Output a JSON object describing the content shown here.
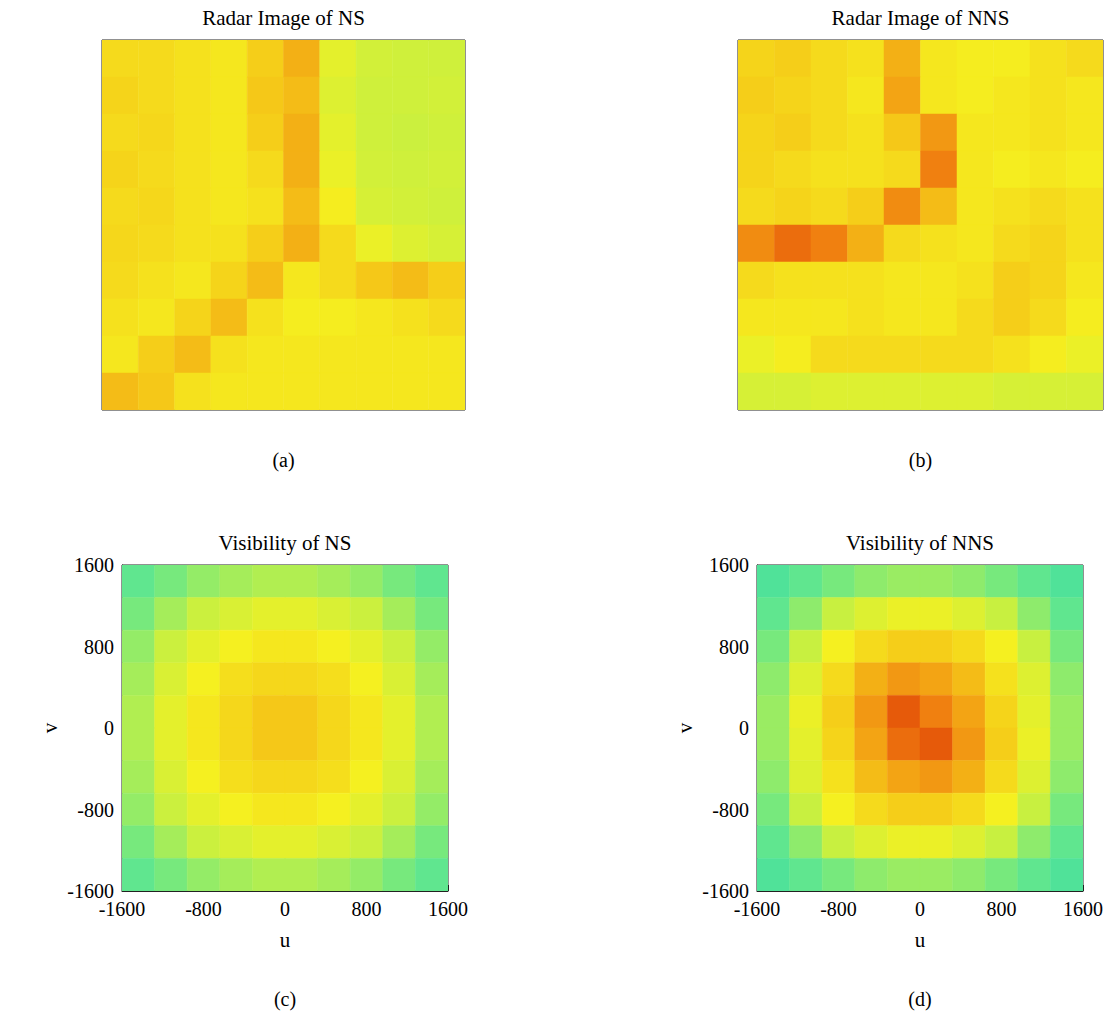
{
  "chart_data": [
    {
      "type": "heatmap",
      "title": "Radar Image of NS",
      "annotations": [
        "(a)"
      ],
      "tick_labels": false,
      "cells": [
        [
          0.62,
          0.62,
          0.6,
          0.58,
          0.66,
          0.72,
          0.5,
          0.45,
          0.44,
          0.44
        ],
        [
          0.64,
          0.62,
          0.6,
          0.58,
          0.68,
          0.7,
          0.48,
          0.44,
          0.44,
          0.45
        ],
        [
          0.62,
          0.63,
          0.6,
          0.58,
          0.66,
          0.72,
          0.5,
          0.44,
          0.43,
          0.44
        ],
        [
          0.64,
          0.62,
          0.6,
          0.58,
          0.62,
          0.72,
          0.52,
          0.45,
          0.44,
          0.45
        ],
        [
          0.62,
          0.63,
          0.6,
          0.58,
          0.6,
          0.7,
          0.56,
          0.46,
          0.45,
          0.44
        ],
        [
          0.63,
          0.62,
          0.6,
          0.6,
          0.66,
          0.72,
          0.62,
          0.52,
          0.48,
          0.46
        ],
        [
          0.62,
          0.6,
          0.58,
          0.64,
          0.7,
          0.58,
          0.62,
          0.68,
          0.7,
          0.66
        ],
        [
          0.6,
          0.58,
          0.64,
          0.7,
          0.6,
          0.56,
          0.56,
          0.58,
          0.6,
          0.62
        ],
        [
          0.58,
          0.66,
          0.7,
          0.6,
          0.58,
          0.58,
          0.58,
          0.58,
          0.58,
          0.58
        ],
        [
          0.7,
          0.68,
          0.6,
          0.58,
          0.58,
          0.58,
          0.58,
          0.58,
          0.58,
          0.58
        ]
      ]
    },
    {
      "type": "heatmap",
      "title": "Radar Image of NNS",
      "annotations": [
        "(b)"
      ],
      "tick_labels": false,
      "cells": [
        [
          0.64,
          0.66,
          0.62,
          0.6,
          0.72,
          0.58,
          0.56,
          0.56,
          0.6,
          0.62
        ],
        [
          0.66,
          0.64,
          0.62,
          0.58,
          0.74,
          0.58,
          0.56,
          0.58,
          0.6,
          0.58
        ],
        [
          0.64,
          0.66,
          0.62,
          0.6,
          0.68,
          0.76,
          0.58,
          0.58,
          0.6,
          0.58
        ],
        [
          0.64,
          0.62,
          0.6,
          0.6,
          0.62,
          0.8,
          0.58,
          0.56,
          0.58,
          0.56
        ],
        [
          0.62,
          0.64,
          0.62,
          0.66,
          0.78,
          0.7,
          0.58,
          0.6,
          0.62,
          0.6
        ],
        [
          0.78,
          0.82,
          0.8,
          0.72,
          0.62,
          0.6,
          0.58,
          0.62,
          0.64,
          0.6
        ],
        [
          0.62,
          0.6,
          0.6,
          0.6,
          0.58,
          0.58,
          0.6,
          0.66,
          0.64,
          0.58
        ],
        [
          0.58,
          0.58,
          0.58,
          0.6,
          0.58,
          0.58,
          0.62,
          0.66,
          0.62,
          0.56
        ],
        [
          0.52,
          0.56,
          0.62,
          0.62,
          0.62,
          0.62,
          0.62,
          0.6,
          0.56,
          0.52
        ],
        [
          0.46,
          0.46,
          0.48,
          0.48,
          0.48,
          0.48,
          0.48,
          0.46,
          0.46,
          0.46
        ]
      ]
    },
    {
      "type": "heatmap",
      "title": "Visibility of NS",
      "annotations": [
        "(c)"
      ],
      "x_label": "u",
      "y_label": "v",
      "grid": false,
      "xlim": [
        -1600,
        1600
      ],
      "ylim": [
        -1600,
        1600
      ],
      "xticks": [
        -1600,
        -800,
        0,
        800,
        1600
      ],
      "yticks": [
        -1600,
        -800,
        0,
        800,
        1600
      ],
      "cells": [
        [
          0.22,
          0.28,
          0.33,
          0.36,
          0.38,
          0.38,
          0.36,
          0.33,
          0.28,
          0.22
        ],
        [
          0.28,
          0.36,
          0.43,
          0.47,
          0.5,
          0.5,
          0.47,
          0.43,
          0.36,
          0.28
        ],
        [
          0.33,
          0.43,
          0.5,
          0.55,
          0.58,
          0.58,
          0.55,
          0.5,
          0.43,
          0.33
        ],
        [
          0.36,
          0.47,
          0.55,
          0.61,
          0.63,
          0.63,
          0.61,
          0.55,
          0.47,
          0.36
        ],
        [
          0.38,
          0.5,
          0.58,
          0.63,
          0.68,
          0.68,
          0.63,
          0.58,
          0.5,
          0.38
        ],
        [
          0.38,
          0.5,
          0.58,
          0.63,
          0.68,
          0.68,
          0.63,
          0.58,
          0.5,
          0.38
        ],
        [
          0.36,
          0.47,
          0.55,
          0.61,
          0.63,
          0.63,
          0.61,
          0.55,
          0.47,
          0.36
        ],
        [
          0.33,
          0.43,
          0.5,
          0.55,
          0.58,
          0.58,
          0.55,
          0.5,
          0.43,
          0.33
        ],
        [
          0.28,
          0.36,
          0.43,
          0.47,
          0.5,
          0.5,
          0.47,
          0.43,
          0.36,
          0.28
        ],
        [
          0.22,
          0.28,
          0.33,
          0.36,
          0.38,
          0.38,
          0.36,
          0.33,
          0.28,
          0.22
        ]
      ]
    },
    {
      "type": "heatmap",
      "title": "Visibility of NNS",
      "annotations": [
        "(d)"
      ],
      "x_label": "u",
      "y_label": "v",
      "grid": false,
      "xlim": [
        -1600,
        1600
      ],
      "ylim": [
        -1600,
        1600
      ],
      "xticks": [
        -1600,
        -800,
        0,
        800,
        1600
      ],
      "yticks": [
        -1600,
        -800,
        0,
        800,
        1600
      ],
      "cells": [
        [
          0.15,
          0.22,
          0.28,
          0.32,
          0.34,
          0.34,
          0.32,
          0.28,
          0.22,
          0.15
        ],
        [
          0.22,
          0.32,
          0.42,
          0.48,
          0.52,
          0.52,
          0.48,
          0.42,
          0.32,
          0.22
        ],
        [
          0.28,
          0.42,
          0.55,
          0.62,
          0.66,
          0.66,
          0.62,
          0.55,
          0.42,
          0.28
        ],
        [
          0.32,
          0.48,
          0.62,
          0.72,
          0.76,
          0.74,
          0.7,
          0.6,
          0.48,
          0.32
        ],
        [
          0.34,
          0.52,
          0.66,
          0.76,
          0.84,
          0.8,
          0.74,
          0.64,
          0.5,
          0.34
        ],
        [
          0.34,
          0.5,
          0.64,
          0.74,
          0.82,
          0.84,
          0.76,
          0.66,
          0.52,
          0.34
        ],
        [
          0.32,
          0.48,
          0.6,
          0.7,
          0.74,
          0.76,
          0.72,
          0.62,
          0.48,
          0.32
        ],
        [
          0.28,
          0.42,
          0.55,
          0.62,
          0.66,
          0.66,
          0.62,
          0.55,
          0.42,
          0.28
        ],
        [
          0.22,
          0.32,
          0.42,
          0.48,
          0.52,
          0.52,
          0.48,
          0.42,
          0.32,
          0.22
        ],
        [
          0.15,
          0.22,
          0.28,
          0.32,
          0.34,
          0.34,
          0.32,
          0.28,
          0.22,
          0.15
        ]
      ]
    }
  ]
}
